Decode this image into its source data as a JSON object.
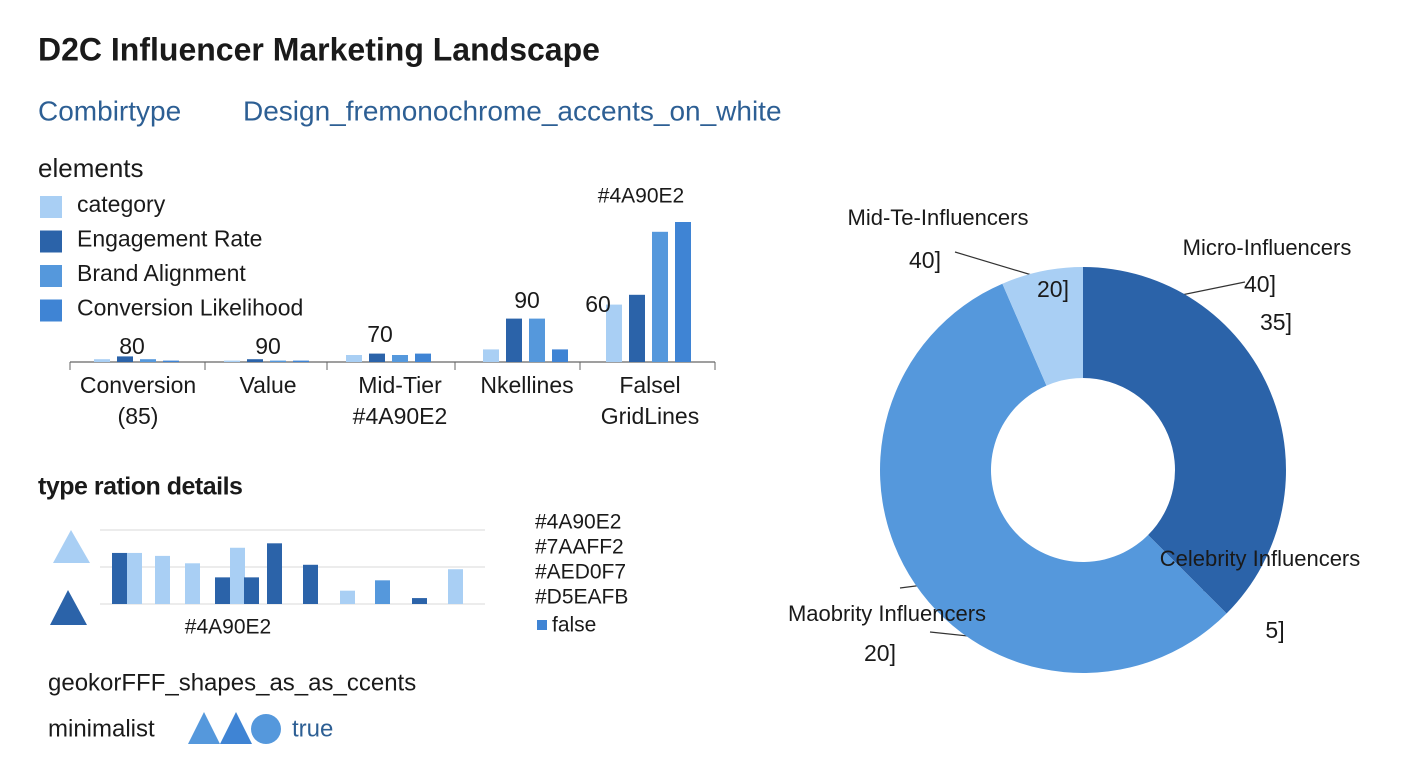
{
  "header": {
    "title": "D2C Influencer Marketing Landscape",
    "subtitle_left": "Combirtype",
    "subtitle_right": "Design_fremonochrome_accents_on_white"
  },
  "chart_data": [
    {
      "type": "bar",
      "legend_title": "elements",
      "categories": [
        "Conversion (85)",
        "Value",
        "Mid-Tier #4A90E2",
        "Nkellines",
        "Falsel GridLines"
      ],
      "series": [
        {
          "name": "category",
          "color": "#a9cff4",
          "values": [
            2,
            1,
            5,
            9,
            41
          ]
        },
        {
          "name": "Engagement Rate",
          "color": "#2b63a9",
          "values": [
            4,
            2,
            6,
            31,
            48
          ]
        },
        {
          "name": "Brand Alignment",
          "color": "#5598dc",
          "values": [
            2,
            1,
            5,
            31,
            93
          ]
        },
        {
          "name": "Conversion Likelihood",
          "color": "#3f84d4",
          "values": [
            1,
            1,
            6,
            9,
            100
          ]
        }
      ],
      "ylim": [
        0,
        100
      ],
      "annotations": [
        80,
        90,
        70,
        90,
        60
      ],
      "annotation_title": "#4A90E2"
    },
    {
      "type": "bar",
      "title": "type ration details",
      "label": "#4A90E2",
      "values": [
        69,
        69,
        65,
        55,
        36,
        76,
        36,
        82,
        53,
        18,
        32,
        8,
        47
      ],
      "colors": [
        "#2b63a9",
        "#a9cff4",
        "#a9cff4",
        "#a9cff4",
        "#2b63a9",
        "#a9cff4",
        "#2b63a9",
        "#2b63a9",
        "#2b63a9",
        "#a9cff4",
        "#5598dc",
        "#2b63a9",
        "#a9cff4"
      ],
      "ylim": [
        0,
        100
      ],
      "grid_lines": [
        0,
        50,
        100
      ],
      "color_legend": [
        "#4A90E2",
        "#7AAFF2",
        "#AED0F7",
        "#D5EAFB"
      ],
      "flag": "false"
    },
    {
      "type": "donut",
      "categories": [
        "Micro-Influencers",
        "Maobrity Influencers",
        "Mid-Te-Influencers"
      ],
      "values": [
        37.5,
        56,
        6.5
      ],
      "colors": [
        "#2b63a9",
        "#5598dc",
        "#a9cff4"
      ],
      "label_numbers": [
        [
          "40]",
          "35]"
        ],
        [
          "20]"
        ],
        [
          "40]",
          "20]"
        ]
      ],
      "extra_label": {
        "text": "Celebrity Influencers",
        "number": "5]"
      }
    }
  ],
  "footer": {
    "accents": "geokorFFF_shapes_as_as_ccents",
    "style": "minimalist",
    "flag": "true"
  }
}
